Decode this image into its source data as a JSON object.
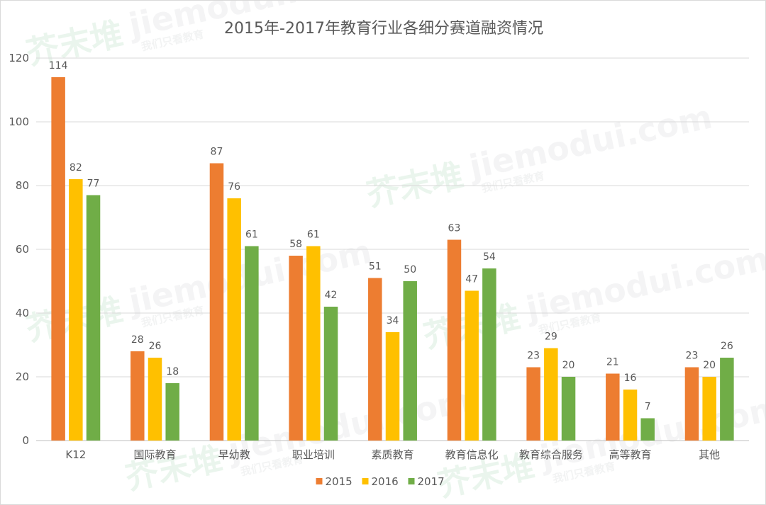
{
  "chart_data": {
    "type": "bar",
    "title": "2015年-2017年教育行业各细分赛道融资情况",
    "categories": [
      "K12",
      "国际教育",
      "早幼教",
      "职业培训",
      "素质教育",
      "教育信息化",
      "教育综合服务",
      "高等教育",
      "其他"
    ],
    "series": [
      {
        "name": "2015",
        "color": "#ED7D31",
        "values": [
          114,
          28,
          87,
          58,
          51,
          63,
          23,
          21,
          23
        ]
      },
      {
        "name": "2016",
        "color": "#FFC000",
        "values": [
          82,
          26,
          76,
          61,
          34,
          47,
          29,
          16,
          20
        ]
      },
      {
        "name": "2017",
        "color": "#70AD47",
        "values": [
          77,
          18,
          61,
          42,
          50,
          54,
          20,
          7,
          26
        ]
      }
    ],
    "ylim": [
      0,
      120
    ],
    "yticks": [
      0,
      20,
      40,
      60,
      80,
      100,
      120
    ],
    "grid": true,
    "legend_position": "bottom",
    "xlabel": "",
    "ylabel": ""
  },
  "watermark": {
    "brand": "芥末堆",
    "domain": "jiemodui.com",
    "slogan": "我们只看教育"
  }
}
